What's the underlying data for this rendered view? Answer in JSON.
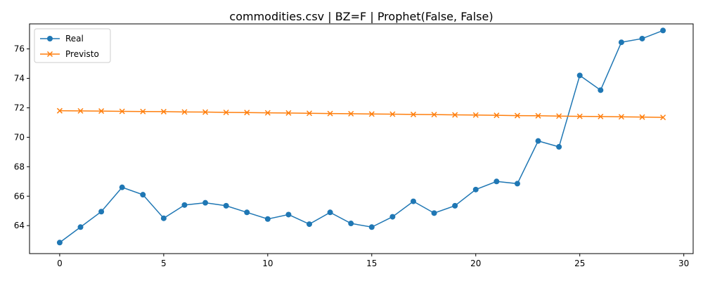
{
  "chart_data": {
    "type": "line",
    "title": "commodities.csv | BZ=F | Prophet(False, False)",
    "xlabel": "",
    "ylabel": "",
    "xlim": [
      -1.45,
      30.45
    ],
    "ylim": [
      62.1,
      77.7
    ],
    "x_ticks": [
      "0",
      "5",
      "10",
      "15",
      "20",
      "25",
      "30"
    ],
    "y_ticks": [
      "64",
      "66",
      "68",
      "70",
      "72",
      "74",
      "76"
    ],
    "legend_position": "upper-left",
    "grid": false,
    "x": [
      0,
      1,
      2,
      3,
      4,
      5,
      6,
      7,
      8,
      9,
      10,
      11,
      12,
      13,
      14,
      15,
      16,
      17,
      18,
      19,
      20,
      21,
      22,
      23,
      24,
      25,
      26,
      27,
      28,
      29
    ],
    "series": [
      {
        "name": "Real",
        "color": "#1f77b4",
        "marker": "circle",
        "values": [
          62.85,
          63.9,
          64.95,
          66.6,
          66.1,
          64.5,
          65.4,
          65.55,
          65.35,
          64.9,
          64.45,
          64.75,
          64.1,
          64.9,
          64.15,
          63.9,
          64.6,
          65.65,
          64.85,
          65.35,
          66.45,
          67.0,
          66.85,
          69.75,
          69.35,
          74.2,
          73.2,
          76.45,
          76.7,
          77.25
        ]
      },
      {
        "name": "Previsto",
        "color": "#ff7f0e",
        "marker": "x",
        "values": [
          71.8,
          71.79,
          71.78,
          71.76,
          71.75,
          71.74,
          71.72,
          71.71,
          71.69,
          71.68,
          71.66,
          71.65,
          71.63,
          71.61,
          71.6,
          71.58,
          71.57,
          71.55,
          71.54,
          71.52,
          71.51,
          71.49,
          71.47,
          71.46,
          71.44,
          71.42,
          71.41,
          71.39,
          71.37,
          71.35
        ]
      }
    ]
  }
}
